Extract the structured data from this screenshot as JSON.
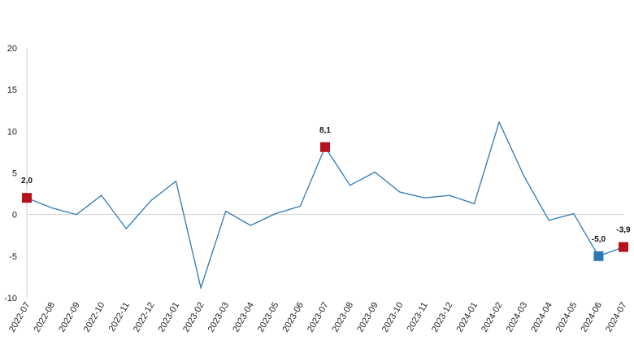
{
  "chart_data": {
    "type": "line",
    "categories": [
      "2022-07",
      "2022-08",
      "2022-09",
      "2022-10",
      "2022-11",
      "2022-12",
      "2023-01",
      "2023-02",
      "2023-03",
      "2023-04",
      "2023-05",
      "2023-06",
      "2023-07",
      "2023-08",
      "2023-09",
      "2023-10",
      "2023-11",
      "2023-12",
      "2024-01",
      "2024-02",
      "2024-03",
      "2024-04",
      "2024-05",
      "2024-06",
      "2024-07"
    ],
    "series": [
      {
        "values": [
          2.0,
          0.8,
          0.0,
          2.3,
          -1.7,
          1.7,
          4.0,
          -8.8,
          0.4,
          -1.3,
          0.1,
          1.0,
          8.1,
          3.5,
          5.1,
          2.7,
          2.0,
          2.3,
          1.3,
          11.1,
          4.6,
          -0.7,
          0.1,
          -5.0,
          -3.9
        ],
        "color": "#2e78b6"
      }
    ],
    "highlights": [
      {
        "index": 0,
        "label": "2,0",
        "color": "#b5121b",
        "label_position": "above"
      },
      {
        "index": 12,
        "label": "8,1",
        "color": "#b5121b",
        "label_position": "above"
      },
      {
        "index": 23,
        "label": "-5,0",
        "color": "#2e78b6",
        "label_position": "above"
      },
      {
        "index": 24,
        "label": "-3,9",
        "color": "#b5121b",
        "label_position": "above"
      }
    ],
    "yticks": [
      "-10",
      "-5",
      "0",
      "5",
      "10",
      "15",
      "20"
    ],
    "ylim": [
      -10,
      20
    ],
    "xlabel": "",
    "ylabel": "",
    "title": "",
    "grid": false,
    "legend": "none"
  }
}
